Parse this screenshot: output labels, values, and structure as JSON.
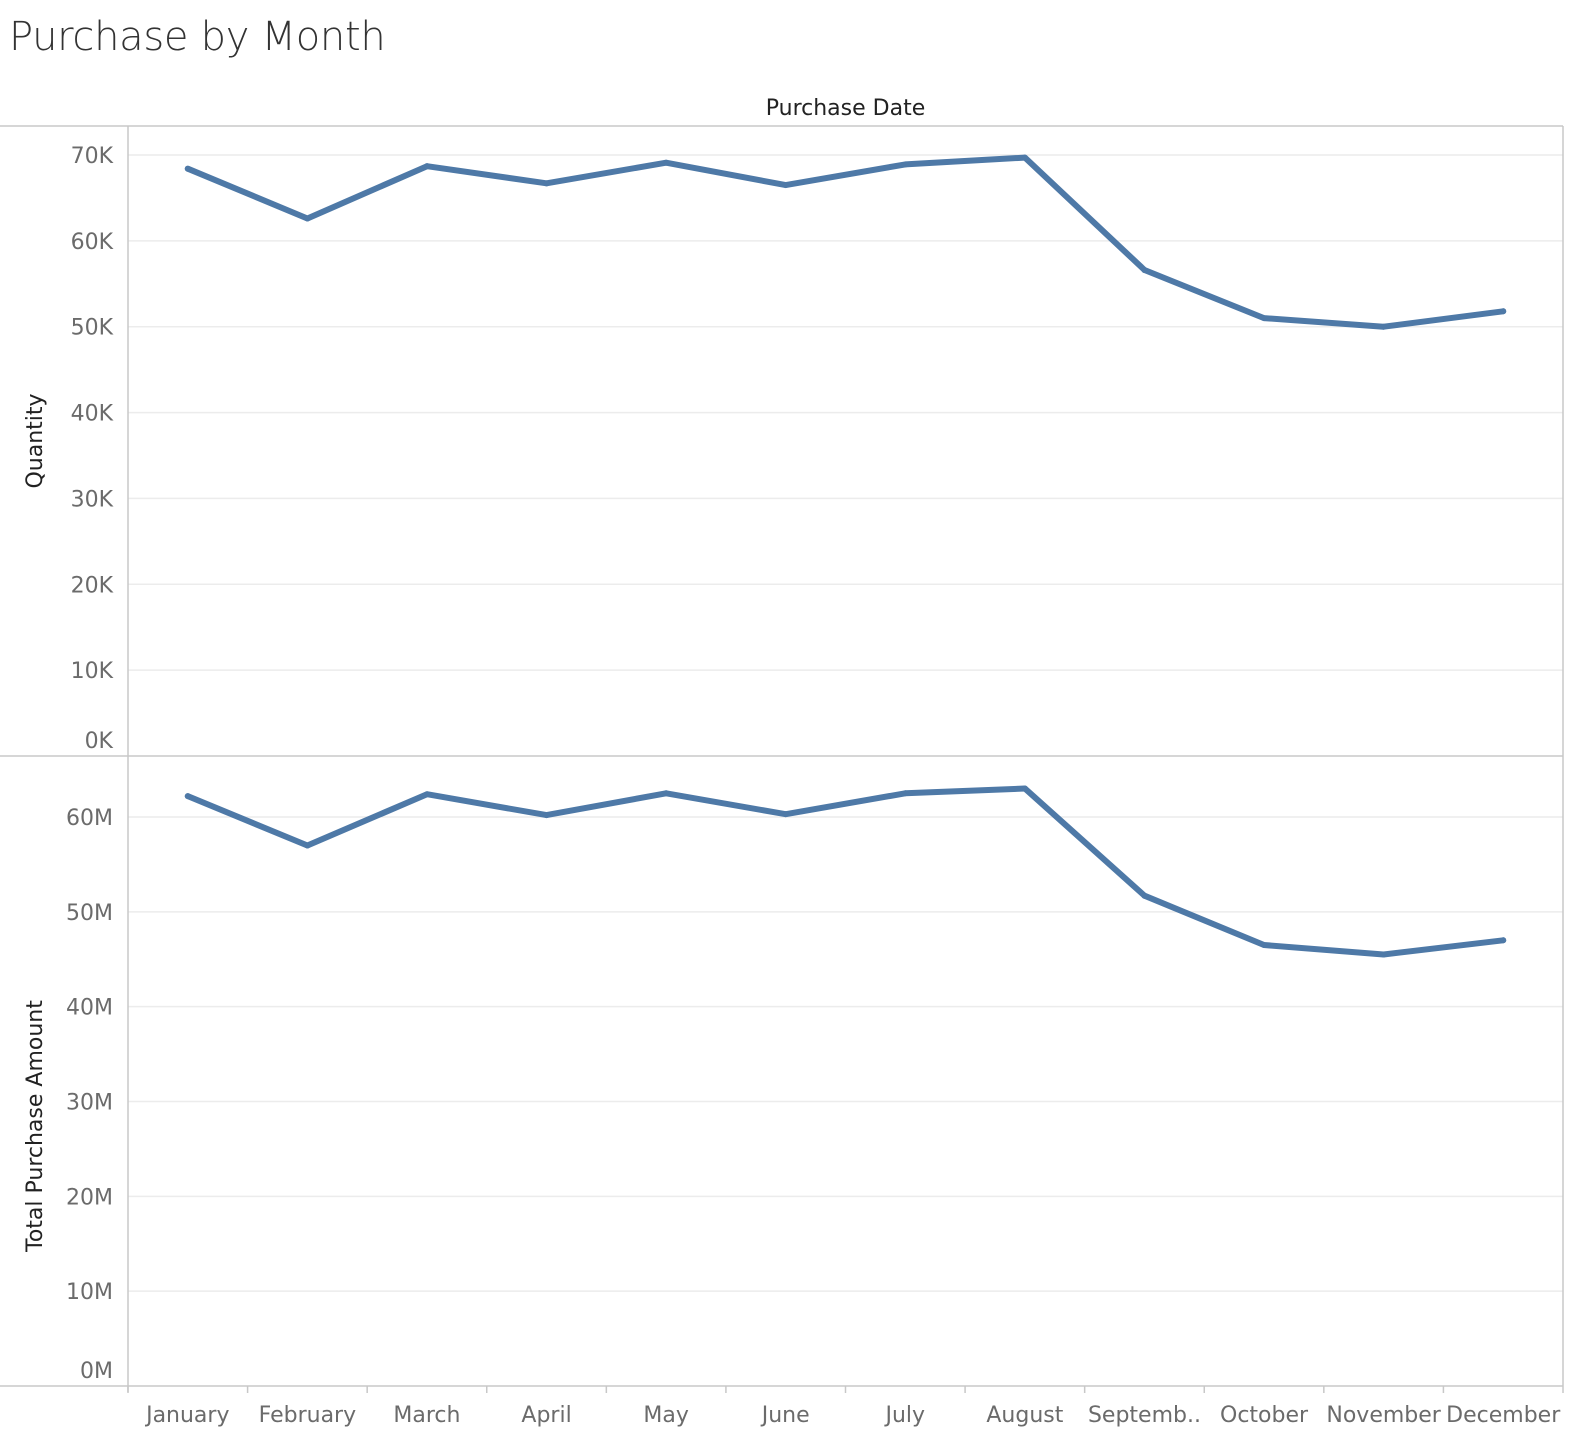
{
  "title": "Purchase by Month",
  "colors": {
    "line": "#4e79a7",
    "grid": "#ececec",
    "frame": "#c8c8c8"
  },
  "chart_data": [
    {
      "type": "line",
      "title": "Purchase by Month",
      "xlabel": "Purchase Date",
      "ylabel": "Quantity",
      "categories": [
        "January",
        "February",
        "March",
        "April",
        "May",
        "June",
        "July",
        "August",
        "Septemb..",
        "October",
        "November",
        "December"
      ],
      "series": [
        {
          "values": [
            68400,
            62600,
            68700,
            66700,
            69100,
            66500,
            68900,
            69700,
            56600,
            51000,
            50000,
            51800
          ]
        }
      ],
      "ylim": [
        0,
        70000
      ],
      "yticks": [
        0,
        10000,
        20000,
        30000,
        40000,
        50000,
        60000,
        70000
      ],
      "ytick_labels": [
        "0K",
        "10K",
        "20K",
        "30K",
        "40K",
        "50K",
        "60K",
        "70K"
      ],
      "grid": true
    },
    {
      "type": "line",
      "xlabel": "Purchase Date",
      "ylabel": "Total Purchase Amount",
      "categories": [
        "January",
        "February",
        "March",
        "April",
        "May",
        "June",
        "July",
        "August",
        "Septemb..",
        "October",
        "November",
        "December"
      ],
      "series": [
        {
          "values": [
            62200000,
            57000000,
            62400000,
            60200000,
            62500000,
            60300000,
            62500000,
            63000000,
            51700000,
            46500000,
            45500000,
            47000000
          ]
        }
      ],
      "ylim": [
        0,
        60000000
      ],
      "yticks": [
        0,
        10000000,
        20000000,
        30000000,
        40000000,
        50000000,
        60000000
      ],
      "ytick_labels": [
        "0M",
        "10M",
        "20M",
        "30M",
        "40M",
        "50M",
        "60M"
      ],
      "grid": true
    }
  ]
}
